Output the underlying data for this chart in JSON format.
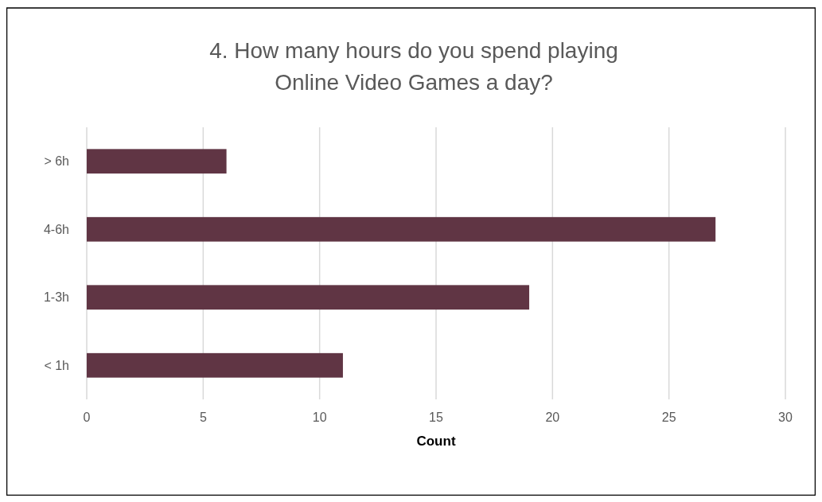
{
  "chart_data": {
    "type": "bar",
    "orientation": "horizontal",
    "title": "4. How many hours do you spend playing Online Video Games a day?",
    "xlabel": "Count",
    "categories": [
      "> 6h",
      "4-6h",
      "1-3h",
      "< 1h"
    ],
    "values": [
      6,
      27,
      19,
      11
    ],
    "color": "#603544",
    "xlim": [
      0,
      30
    ],
    "xticks": [
      0,
      5,
      10,
      15,
      20,
      25,
      30
    ],
    "grid": "x"
  }
}
